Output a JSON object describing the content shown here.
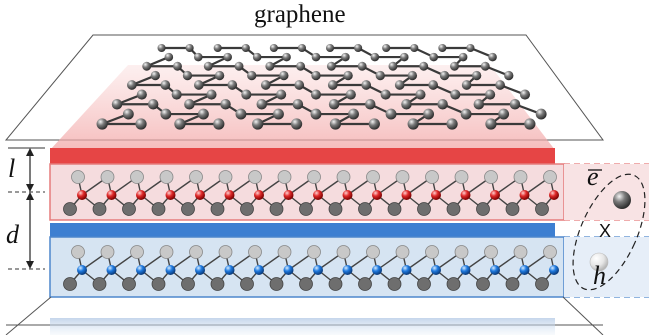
{
  "title": "graphene",
  "labels": {
    "l": "l",
    "d": "d",
    "electron": "e",
    "hole": "h",
    "exciton": "X"
  },
  "colors": {
    "graphene_atom": "#4a4a4a",
    "red_layer": "#e64545",
    "red_atom": "#d81c1c",
    "blue_layer": "#3d7fd1",
    "blue_atom": "#1e72d6",
    "chalcogen_atom": "#6e6e6e",
    "outline": "#555555"
  },
  "icons": [
    "graphene-lattice",
    "electron-sphere",
    "hole-sphere",
    "exciton-ellipse"
  ]
}
